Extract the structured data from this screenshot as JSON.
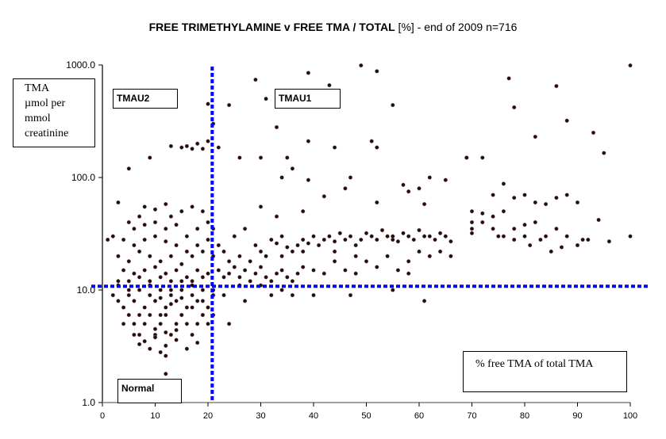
{
  "chart_data": {
    "type": "scatter",
    "title": "FREE TRIMETHYLAMINE v  FREE TMA / TOTAL [%] - end of 2009 n=716",
    "title_bold": "FREE TRIMETHYLAMINE v  FREE TMA / TOTAL",
    "title_rest": " [%] - end of 2009 n=716",
    "xlabel": "% free TMA of  total TMA",
    "ylabel_lines": [
      "TMA",
      "µmol per",
      "mmol",
      "creatinine"
    ],
    "ylabel": "TMA µmol per mmol creatinine",
    "xlim": [
      0,
      100
    ],
    "ylim": [
      1,
      1000
    ],
    "yscale": "log",
    "x_ticks": [
      "0",
      "10",
      "20",
      "30",
      "40",
      "50",
      "60",
      "70",
      "80",
      "90",
      "100"
    ],
    "y_ticks": [
      "1.0",
      "10.0",
      "100.0",
      "1000.0"
    ],
    "grid": false,
    "n": 716,
    "thresholds": {
      "x_percent": 20.8,
      "y_tma": 10.8,
      "line_color": "#0000ff",
      "line_style": "dashed"
    },
    "regions": [
      {
        "label": "TMAU2",
        "position": "upper-left"
      },
      {
        "label": "TMAU1",
        "position": "upper-right"
      },
      {
        "label": "Normal",
        "position": "lower-left"
      }
    ],
    "point_color": "#2a0a0a",
    "series": [
      {
        "name": "patients",
        "points": [
          [
            49,
            990
          ],
          [
            100,
            990
          ],
          [
            52,
            880
          ],
          [
            39,
            850
          ],
          [
            77,
            760
          ],
          [
            29,
            740
          ],
          [
            43,
            660
          ],
          [
            86,
            650
          ],
          [
            31,
            500
          ],
          [
            20,
            450
          ],
          [
            24,
            440
          ],
          [
            55,
            440
          ],
          [
            78,
            420
          ],
          [
            88,
            320
          ],
          [
            21,
            300
          ],
          [
            18,
            200
          ],
          [
            33,
            280
          ],
          [
            16,
            190
          ],
          [
            13,
            190
          ],
          [
            15,
            185
          ],
          [
            20,
            210
          ],
          [
            17,
            180
          ],
          [
            19,
            180
          ],
          [
            22,
            185
          ],
          [
            39,
            210
          ],
          [
            51,
            210
          ],
          [
            52,
            185
          ],
          [
            69,
            150
          ],
          [
            72,
            150
          ],
          [
            82,
            230
          ],
          [
            93,
            250
          ],
          [
            95,
            165
          ],
          [
            9,
            150
          ],
          [
            5,
            120
          ],
          [
            26,
            150
          ],
          [
            30,
            150
          ],
          [
            35,
            150
          ],
          [
            44,
            185
          ],
          [
            69,
            150
          ],
          [
            34,
            100
          ],
          [
            39,
            95
          ],
          [
            36,
            120
          ],
          [
            47,
            100
          ],
          [
            46,
            80
          ],
          [
            57,
            86
          ],
          [
            58,
            75
          ],
          [
            60,
            80
          ],
          [
            42,
            68
          ],
          [
            78,
            66
          ],
          [
            30,
            55
          ],
          [
            33,
            45
          ],
          [
            62,
            100
          ],
          [
            65,
            95
          ],
          [
            38,
            50
          ],
          [
            52,
            60
          ],
          [
            61,
            58
          ],
          [
            55,
            30
          ],
          [
            72,
            48
          ],
          [
            74,
            70
          ],
          [
            76,
            88
          ],
          [
            80,
            70
          ],
          [
            82,
            60
          ],
          [
            84,
            58
          ],
          [
            86,
            66
          ],
          [
            88,
            70
          ],
          [
            90,
            60
          ],
          [
            70,
            50
          ],
          [
            70,
            40
          ],
          [
            70,
            35
          ],
          [
            72,
            40
          ],
          [
            74,
            45
          ],
          [
            76,
            50
          ],
          [
            78,
            35
          ],
          [
            80,
            38
          ],
          [
            82,
            40
          ],
          [
            84,
            30
          ],
          [
            86,
            35
          ],
          [
            88,
            30
          ],
          [
            90,
            25
          ],
          [
            92,
            28
          ],
          [
            74,
            35
          ],
          [
            76,
            30
          ],
          [
            78,
            28
          ],
          [
            81,
            25
          ],
          [
            83,
            28
          ],
          [
            85,
            22
          ],
          [
            87,
            24
          ],
          [
            70,
            32
          ],
          [
            75,
            30
          ],
          [
            80,
            30
          ],
          [
            94,
            42
          ],
          [
            91,
            28
          ],
          [
            96,
            27
          ],
          [
            100,
            30
          ],
          [
            3,
            60
          ],
          [
            5,
            40
          ],
          [
            7,
            45
          ],
          [
            8,
            55
          ],
          [
            10,
            52
          ],
          [
            12,
            58
          ],
          [
            13,
            45
          ],
          [
            15,
            50
          ],
          [
            17,
            55
          ],
          [
            19,
            50
          ],
          [
            6,
            35
          ],
          [
            8,
            38
          ],
          [
            10,
            40
          ],
          [
            12,
            35
          ],
          [
            14,
            38
          ],
          [
            16,
            30
          ],
          [
            18,
            35
          ],
          [
            20,
            40
          ],
          [
            2,
            30
          ],
          [
            4,
            28
          ],
          [
            6,
            25
          ],
          [
            8,
            28
          ],
          [
            10,
            30
          ],
          [
            12,
            27
          ],
          [
            14,
            25
          ],
          [
            16,
            22
          ],
          [
            18,
            25
          ],
          [
            20,
            28
          ],
          [
            21,
            35
          ],
          [
            3,
            20
          ],
          [
            5,
            18
          ],
          [
            7,
            22
          ],
          [
            9,
            20
          ],
          [
            11,
            18
          ],
          [
            13,
            20
          ],
          [
            15,
            17
          ],
          [
            17,
            20
          ],
          [
            19,
            22
          ],
          [
            4,
            15
          ],
          [
            6,
            14
          ],
          [
            8,
            15
          ],
          [
            10,
            16
          ],
          [
            12,
            14
          ],
          [
            14,
            15
          ],
          [
            16,
            13
          ],
          [
            18,
            15
          ],
          [
            20,
            14
          ],
          [
            1,
            28
          ],
          [
            3,
            12
          ],
          [
            5,
            12
          ],
          [
            7,
            13
          ],
          [
            9,
            12
          ],
          [
            11,
            13
          ],
          [
            13,
            12
          ],
          [
            15,
            12
          ],
          [
            17,
            12
          ],
          [
            19,
            13
          ],
          [
            21,
            20
          ],
          [
            22,
            25
          ],
          [
            23,
            22
          ],
          [
            24,
            18
          ],
          [
            25,
            30
          ],
          [
            26,
            20
          ],
          [
            27,
            35
          ],
          [
            28,
            18
          ],
          [
            29,
            25
          ],
          [
            30,
            22
          ],
          [
            31,
            20
          ],
          [
            32,
            28
          ],
          [
            33,
            26
          ],
          [
            34,
            30
          ],
          [
            35,
            24
          ],
          [
            36,
            22
          ],
          [
            37,
            25
          ],
          [
            38,
            28
          ],
          [
            39,
            26
          ],
          [
            40,
            30
          ],
          [
            41,
            25
          ],
          [
            42,
            28
          ],
          [
            43,
            30
          ],
          [
            44,
            27
          ],
          [
            45,
            32
          ],
          [
            46,
            28
          ],
          [
            47,
            30
          ],
          [
            48,
            25
          ],
          [
            49,
            28
          ],
          [
            50,
            32
          ],
          [
            51,
            30
          ],
          [
            52,
            28
          ],
          [
            53,
            34
          ],
          [
            54,
            30
          ],
          [
            55,
            28
          ],
          [
            56,
            27
          ],
          [
            57,
            32
          ],
          [
            58,
            30
          ],
          [
            59,
            28
          ],
          [
            60,
            34
          ],
          [
            61,
            30
          ],
          [
            62,
            30
          ],
          [
            63,
            28
          ],
          [
            64,
            32
          ],
          [
            65,
            30
          ],
          [
            66,
            27
          ],
          [
            22,
            15
          ],
          [
            23,
            13
          ],
          [
            24,
            14
          ],
          [
            25,
            16
          ],
          [
            26,
            13
          ],
          [
            27,
            15
          ],
          [
            28,
            12
          ],
          [
            29,
            14
          ],
          [
            30,
            16
          ],
          [
            31,
            13
          ],
          [
            32,
            12
          ],
          [
            33,
            14
          ],
          [
            34,
            15
          ],
          [
            35,
            13
          ],
          [
            36,
            12
          ],
          [
            37,
            14
          ],
          [
            38,
            16
          ],
          [
            40,
            15
          ],
          [
            42,
            14
          ],
          [
            44,
            18
          ],
          [
            46,
            15
          ],
          [
            48,
            20
          ],
          [
            50,
            18
          ],
          [
            52,
            16
          ],
          [
            54,
            20
          ],
          [
            56,
            15
          ],
          [
            58,
            18
          ],
          [
            60,
            22
          ],
          [
            62,
            20
          ],
          [
            64,
            22
          ],
          [
            66,
            20
          ],
          [
            58,
            14
          ],
          [
            48,
            14
          ],
          [
            44,
            22
          ],
          [
            38,
            22
          ],
          [
            34,
            20
          ],
          [
            26,
            11
          ],
          [
            30,
            11
          ],
          [
            32,
            9
          ],
          [
            34,
            10
          ],
          [
            36,
            9
          ],
          [
            40,
            9
          ],
          [
            47,
            9
          ],
          [
            55,
            10
          ],
          [
            61,
            8
          ],
          [
            2,
            9
          ],
          [
            3,
            8
          ],
          [
            4,
            7
          ],
          [
            5,
            9
          ],
          [
            6,
            8
          ],
          [
            7,
            6
          ],
          [
            8,
            7
          ],
          [
            9,
            9
          ],
          [
            10,
            8
          ],
          [
            11,
            6
          ],
          [
            12,
            7
          ],
          [
            13,
            9
          ],
          [
            14,
            8
          ],
          [
            15,
            6
          ],
          [
            16,
            7
          ],
          [
            17,
            9
          ],
          [
            18,
            8
          ],
          [
            19,
            6
          ],
          [
            20,
            7
          ],
          [
            21,
            9
          ],
          [
            4,
            5
          ],
          [
            5,
            6
          ],
          [
            6,
            5
          ],
          [
            7,
            4
          ],
          [
            8,
            5
          ],
          [
            9,
            6
          ],
          [
            10,
            4
          ],
          [
            11,
            5
          ],
          [
            12,
            6
          ],
          [
            13,
            4
          ],
          [
            14,
            5
          ],
          [
            15,
            6
          ],
          [
            16,
            5
          ],
          [
            17,
            4
          ],
          [
            18,
            5
          ],
          [
            19,
            6
          ],
          [
            20,
            5
          ],
          [
            6,
            4
          ],
          [
            8,
            3.5
          ],
          [
            10,
            3.8
          ],
          [
            12,
            3.2
          ],
          [
            14,
            3.6
          ],
          [
            16,
            3
          ],
          [
            18,
            3.4
          ],
          [
            9,
            3
          ],
          [
            11,
            2.8
          ],
          [
            12,
            2.6
          ],
          [
            7,
            3.3
          ],
          [
            10,
            4.5
          ],
          [
            12,
            4.2
          ],
          [
            14,
            4.4
          ],
          [
            11,
            8.5
          ],
          [
            13,
            7.5
          ],
          [
            15,
            8.5
          ],
          [
            17,
            7
          ],
          [
            19,
            8
          ],
          [
            21,
            6
          ],
          [
            24,
            5
          ],
          [
            12,
            1.8
          ],
          [
            3,
            11
          ],
          [
            5,
            10
          ],
          [
            7,
            10
          ],
          [
            9,
            11
          ],
          [
            11,
            10
          ],
          [
            13,
            10
          ],
          [
            15,
            10
          ],
          [
            17,
            11
          ],
          [
            19,
            10
          ],
          [
            21,
            10
          ],
          [
            23,
            9
          ],
          [
            27,
            8
          ]
        ]
      }
    ]
  },
  "labels": {
    "region_tmau2": "TMAU2",
    "region_tmau1": "TMAU1",
    "region_normal": "Normal"
  }
}
